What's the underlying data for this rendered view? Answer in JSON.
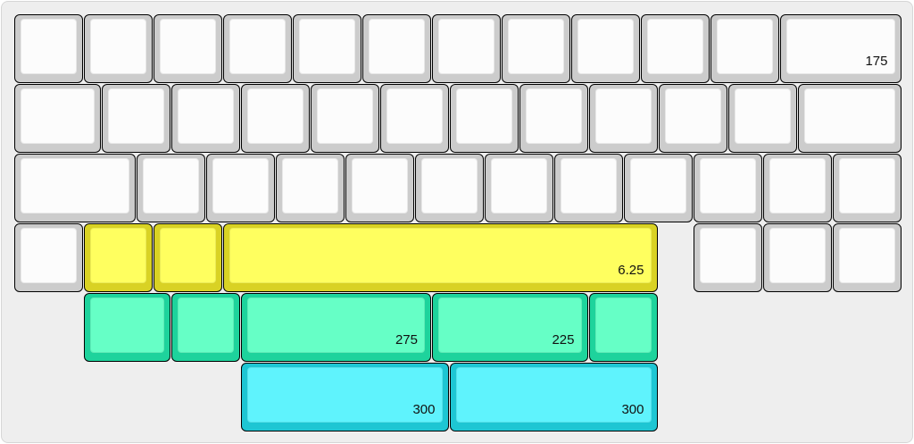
{
  "keyboard": {
    "colors": {
      "white": {
        "cap": "#fcfcfc",
        "side": "#cccccc"
      },
      "yellow": {
        "cap": "#ffff5f",
        "side": "#d9d224"
      },
      "green": {
        "cap": "#66ffc6",
        "side": "#1ed39c"
      },
      "cyan": {
        "cap": "#5ff3fd",
        "side": "#1ec6d3"
      }
    },
    "rows": [
      {
        "keys": [
          {
            "label": "",
            "color": "white"
          },
          {
            "label": "",
            "color": "white"
          },
          {
            "label": "",
            "color": "white"
          },
          {
            "label": "",
            "color": "white"
          },
          {
            "label": "",
            "color": "white"
          },
          {
            "label": "",
            "color": "white"
          },
          {
            "label": "",
            "color": "white"
          },
          {
            "label": "",
            "color": "white"
          },
          {
            "label": "",
            "color": "white"
          },
          {
            "label": "",
            "color": "white"
          },
          {
            "label": "",
            "color": "white"
          },
          {
            "label": "175",
            "color": "white"
          }
        ]
      },
      {
        "keys": [
          {
            "label": "",
            "color": "white"
          },
          {
            "label": "",
            "color": "white"
          },
          {
            "label": "",
            "color": "white"
          },
          {
            "label": "",
            "color": "white"
          },
          {
            "label": "",
            "color": "white"
          },
          {
            "label": "",
            "color": "white"
          },
          {
            "label": "",
            "color": "white"
          },
          {
            "label": "",
            "color": "white"
          },
          {
            "label": "",
            "color": "white"
          },
          {
            "label": "",
            "color": "white"
          },
          {
            "label": "",
            "color": "white"
          },
          {
            "label": "",
            "color": "white"
          }
        ]
      },
      {
        "keys": [
          {
            "label": "",
            "color": "white"
          },
          {
            "label": "",
            "color": "white"
          },
          {
            "label": "",
            "color": "white"
          },
          {
            "label": "",
            "color": "white"
          },
          {
            "label": "",
            "color": "white"
          },
          {
            "label": "",
            "color": "white"
          },
          {
            "label": "",
            "color": "white"
          },
          {
            "label": "",
            "color": "white"
          },
          {
            "label": "",
            "color": "white"
          },
          {
            "label": "",
            "color": "white"
          },
          {
            "label": "",
            "color": "white"
          },
          {
            "label": "",
            "color": "white"
          }
        ]
      },
      {
        "keys": [
          {
            "label": "",
            "color": "white"
          },
          {
            "label": "",
            "color": "yellow"
          },
          {
            "label": "",
            "color": "yellow"
          },
          {
            "label": "6.25",
            "color": "yellow"
          },
          {
            "label": "",
            "color": "white"
          },
          {
            "label": "",
            "color": "white"
          },
          {
            "label": "",
            "color": "white"
          }
        ]
      },
      {
        "keys": [
          {
            "label": "",
            "color": "green"
          },
          {
            "label": "",
            "color": "green"
          },
          {
            "label": "275",
            "color": "green"
          },
          {
            "label": "225",
            "color": "green"
          },
          {
            "label": "",
            "color": "green"
          }
        ]
      },
      {
        "keys": [
          {
            "label": "300",
            "color": "cyan"
          },
          {
            "label": "300",
            "color": "cyan"
          }
        ]
      }
    ]
  }
}
